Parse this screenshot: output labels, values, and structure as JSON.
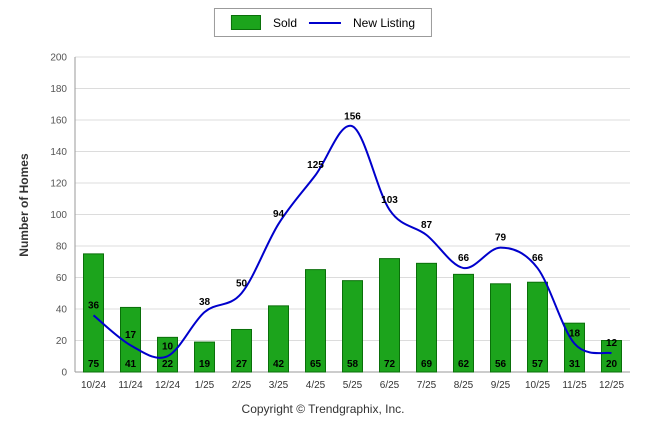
{
  "legend": {
    "sold_label": "Sold",
    "new_listing_label": "New Listing"
  },
  "footer": {
    "copyright": "Copyright © Trendgraphix, Inc."
  },
  "colors": {
    "bar_fill": "#1ca41c",
    "bar_border": "#0a6f0a",
    "line": "#0000cc",
    "grid": "#dcdcdc",
    "axis": "#9a9a9a"
  },
  "chart_data": {
    "type": "bar",
    "subtype": "bar+line combo",
    "title": "",
    "xlabel": "",
    "ylabel": "Number of Homes",
    "ylim": [
      0,
      200
    ],
    "ytick_step": 20,
    "grid": true,
    "legend_position": "top-center",
    "categories": [
      "10/24",
      "11/24",
      "12/24",
      "1/25",
      "2/25",
      "3/25",
      "4/25",
      "5/25",
      "6/25",
      "7/25",
      "8/25",
      "9/25",
      "10/25",
      "11/25",
      "12/25"
    ],
    "series": [
      {
        "name": "Sold",
        "type": "bar",
        "color": "#1ca41c",
        "values": [
          75,
          41,
          22,
          19,
          27,
          42,
          65,
          58,
          72,
          69,
          62,
          56,
          57,
          31,
          20
        ]
      },
      {
        "name": "New Listing",
        "type": "line",
        "color": "#0000cc",
        "values": [
          36,
          17,
          10,
          38,
          50,
          94,
          125,
          156,
          103,
          87,
          66,
          79,
          66,
          18,
          12
        ]
      }
    ]
  }
}
